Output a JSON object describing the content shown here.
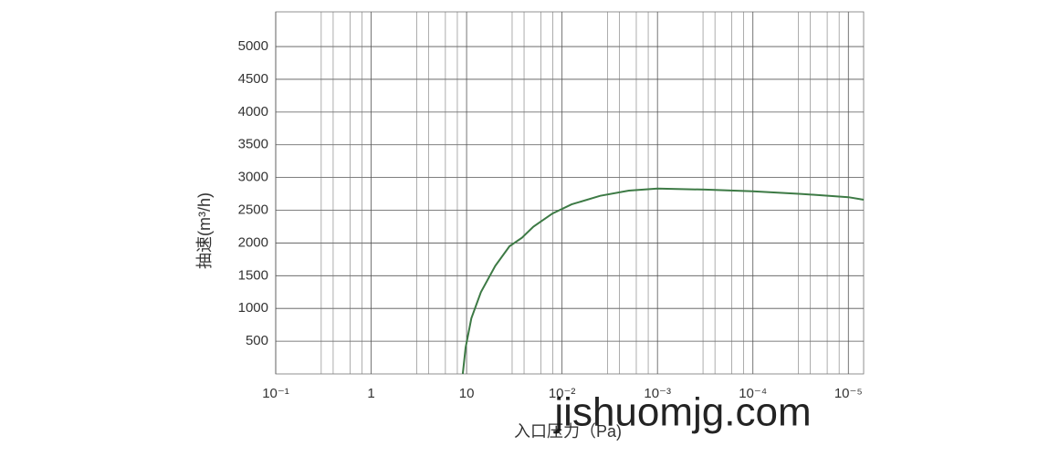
{
  "chart_data": {
    "type": "line",
    "xlabel": "入口压力（Pa)",
    "ylabel": "抽速(m³/h)",
    "watermark": "jishuomjg.com",
    "x": [
      1.96,
      1.99,
      2.05,
      2.15,
      2.3,
      2.45,
      2.58,
      2.7,
      2.9,
      3.1,
      3.4,
      3.7,
      4.0,
      4.5,
      5.0,
      5.5,
      6.0,
      6.16
    ],
    "series": [
      {
        "name": "抽速",
        "color": "#3d7a45",
        "values": [
          0,
          400,
          850,
          1250,
          1650,
          1950,
          2080,
          2250,
          2450,
          2590,
          2720,
          2800,
          2830,
          2815,
          2790,
          2750,
          2700,
          2660
        ]
      }
    ],
    "xlim": [
      0,
      6.16
    ],
    "xticks": [
      {
        "value": 0,
        "label": "10⁻¹"
      },
      {
        "value": 1,
        "label": "1"
      },
      {
        "value": 2,
        "label": "10"
      },
      {
        "value": 3,
        "label": "10⁻²"
      },
      {
        "value": 4,
        "label": "10⁻³"
      },
      {
        "value": 5,
        "label": "10⁻⁴"
      },
      {
        "value": 6,
        "label": "10⁻⁵"
      }
    ],
    "ylim": [
      0,
      5530
    ],
    "yticks": [
      500,
      1000,
      1500,
      2000,
      2500,
      3000,
      3500,
      4000,
      4500,
      5000
    ],
    "grid": true
  }
}
